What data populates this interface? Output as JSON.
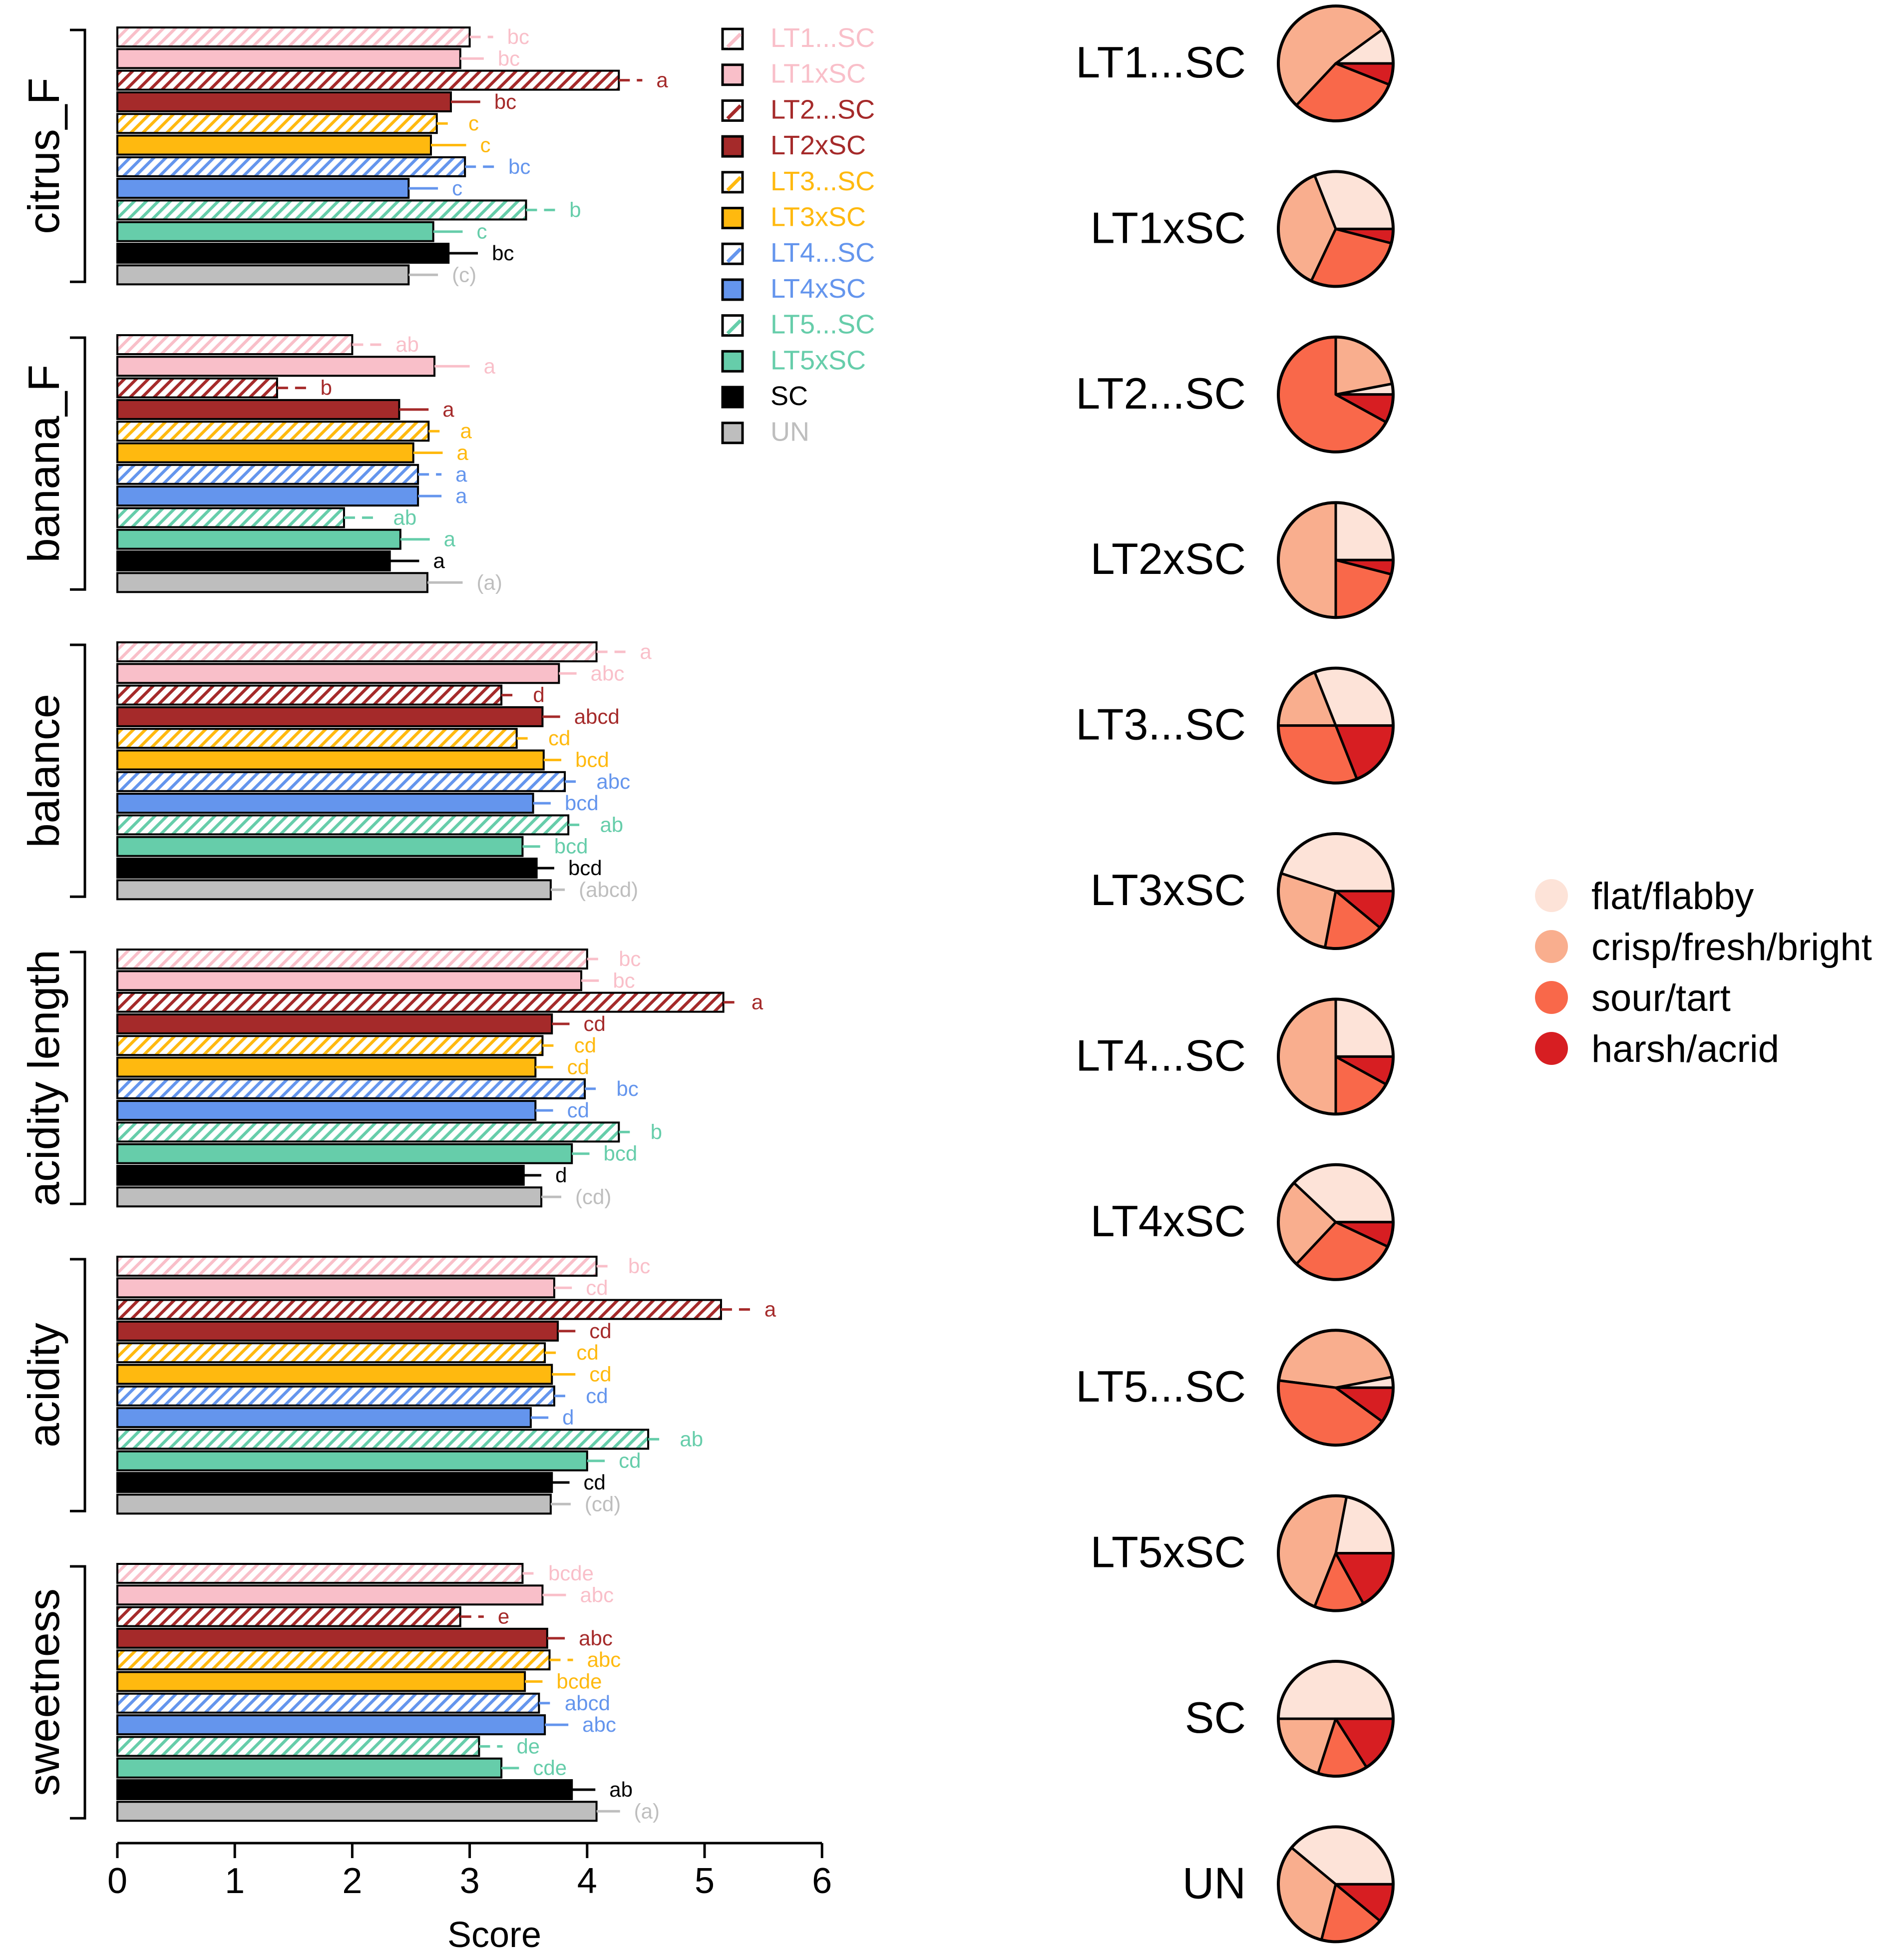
{
  "chart_data": [
    {
      "type": "bar",
      "orientation": "horizontal",
      "title": "",
      "xlabel": "Score",
      "xlim": [
        0,
        6
      ],
      "xticks": [
        "0",
        "1",
        "2",
        "3",
        "4",
        "5",
        "6"
      ],
      "attributes": [
        "citrus_F",
        "banana_F",
        "balance",
        "acidity length",
        "acidity",
        "sweetness"
      ],
      "series": [
        {
          "name": "LT1...SC",
          "color": "#F9BFC9",
          "hatched": true,
          "values": [
            3.0,
            2.0,
            4.08,
            4.0,
            4.08,
            3.45
          ],
          "errors": [
            0.2,
            0.25,
            0.25,
            0.15,
            0.15,
            0.1
          ],
          "letters": [
            "bc",
            "ab",
            "a",
            "bc",
            "bc",
            "bcde"
          ]
        },
        {
          "name": "LT1xSC",
          "color": "#F9BFC9",
          "hatched": false,
          "values": [
            2.92,
            2.7,
            3.76,
            3.95,
            3.72,
            3.62
          ],
          "errors": [
            0.2,
            0.3,
            0.15,
            0.15,
            0.15,
            0.2
          ],
          "letters": [
            "bc",
            "a",
            "abc",
            "bc",
            "cd",
            "abc"
          ]
        },
        {
          "name": "LT2...SC",
          "color": "#A52A2A",
          "hatched": true,
          "values": [
            4.27,
            1.36,
            3.27,
            5.16,
            5.14,
            2.92
          ],
          "errors": [
            0.2,
            0.25,
            0.15,
            0.12,
            0.25,
            0.2
          ],
          "letters": [
            "a",
            "b",
            "d",
            "a",
            "a",
            "e"
          ]
        },
        {
          "name": "LT2xSC",
          "color": "#A52A2A",
          "hatched": false,
          "values": [
            2.84,
            2.4,
            3.62,
            3.7,
            3.75,
            3.66
          ],
          "errors": [
            0.25,
            0.25,
            0.15,
            0.15,
            0.15,
            0.15
          ],
          "letters": [
            "bc",
            "a",
            "abcd",
            "cd",
            "cd",
            "abc"
          ]
        },
        {
          "name": "LT3...SC",
          "color": "#FFB90F",
          "hatched": true,
          "values": [
            2.72,
            2.65,
            3.4,
            3.62,
            3.64,
            3.68
          ],
          "errors": [
            0.15,
            0.15,
            0.15,
            0.15,
            0.15,
            0.2
          ],
          "letters": [
            "c",
            "a",
            "cd",
            "cd",
            "cd",
            "abc"
          ]
        },
        {
          "name": "LT3xSC",
          "color": "#FFB90F",
          "hatched": false,
          "values": [
            2.67,
            2.52,
            3.63,
            3.56,
            3.7,
            3.47
          ],
          "errors": [
            0.3,
            0.25,
            0.15,
            0.15,
            0.2,
            0.15
          ],
          "letters": [
            "c",
            "a",
            "bcd",
            "cd",
            "cd",
            "bcde"
          ]
        },
        {
          "name": "LT4...SC",
          "color": "#6495ED",
          "hatched": true,
          "values": [
            2.96,
            2.56,
            3.81,
            3.98,
            3.72,
            3.59
          ],
          "errors": [
            0.25,
            0.2,
            0.15,
            0.15,
            0.15,
            0.1
          ],
          "letters": [
            "bc",
            "a",
            "abc",
            "bc",
            "cd",
            "abcd"
          ]
        },
        {
          "name": "LT4xSC",
          "color": "#6495ED",
          "hatched": false,
          "values": [
            2.48,
            2.56,
            3.54,
            3.56,
            3.52,
            3.64
          ],
          "errors": [
            0.25,
            0.2,
            0.15,
            0.15,
            0.15,
            0.2
          ],
          "letters": [
            "c",
            "a",
            "bcd",
            "cd",
            "d",
            "abc"
          ]
        },
        {
          "name": "LT5...SC",
          "color": "#66CDAA",
          "hatched": true,
          "values": [
            3.48,
            1.93,
            3.84,
            4.27,
            4.52,
            3.08
          ],
          "errors": [
            0.25,
            0.3,
            0.15,
            0.15,
            0.15,
            0.2
          ],
          "letters": [
            "b",
            "ab",
            "ab",
            "b",
            "ab",
            "de"
          ]
        },
        {
          "name": "LT5xSC",
          "color": "#66CDAA",
          "hatched": false,
          "values": [
            2.69,
            2.41,
            3.45,
            3.87,
            4.0,
            3.27
          ],
          "errors": [
            0.25,
            0.25,
            0.15,
            0.15,
            0.15,
            0.15
          ],
          "letters": [
            "c",
            "a",
            "bcd",
            "bcd",
            "cd",
            "cde"
          ]
        },
        {
          "name": "SC",
          "color": "#000000",
          "hatched": false,
          "values": [
            2.82,
            2.32,
            3.57,
            3.46,
            3.7,
            3.87
          ],
          "errors": [
            0.25,
            0.25,
            0.15,
            0.15,
            0.15,
            0.2
          ],
          "letters": [
            "bc",
            "a",
            "bcd",
            "d",
            "cd",
            "ab"
          ]
        },
        {
          "name": "UN",
          "color": "#BEBEBE",
          "hatched": false,
          "values": [
            2.48,
            2.64,
            3.69,
            3.61,
            3.69,
            4.08
          ],
          "errors": [
            0.25,
            0.3,
            0.12,
            0.17,
            0.17,
            0.2
          ],
          "letters": [
            "(c)",
            "(a)",
            "(abcd)",
            "(cd)",
            "(cd)",
            "(a)"
          ]
        }
      ]
    },
    {
      "type": "pie",
      "title": "",
      "categories": [
        "flat/flabby",
        "crisp/fresh/bright",
        "sour/tart",
        "harsh/acrid"
      ],
      "colors": [
        "#FDE3D8",
        "#F9AE8E",
        "#F9684A",
        "#D71E22"
      ],
      "treatments": [
        {
          "name": "LT1...SC",
          "values": [
            0.1,
            0.53,
            0.31,
            0.06
          ]
        },
        {
          "name": "LT1xSC",
          "values": [
            0.31,
            0.37,
            0.28,
            0.04
          ]
        },
        {
          "name": "LT2...SC",
          "values": [
            0.03,
            0.22,
            0.67,
            0.08
          ]
        },
        {
          "name": "LT2xSC",
          "values": [
            0.25,
            0.5,
            0.21,
            0.04
          ]
        },
        {
          "name": "LT3...SC",
          "values": [
            0.31,
            0.19,
            0.31,
            0.19
          ]
        },
        {
          "name": "LT3xSC",
          "values": [
            0.45,
            0.27,
            0.17,
            0.11
          ]
        },
        {
          "name": "LT4...SC",
          "values": [
            0.25,
            0.5,
            0.17,
            0.08
          ]
        },
        {
          "name": "LT4xSC",
          "values": [
            0.38,
            0.25,
            0.3,
            0.07
          ]
        },
        {
          "name": "LT5...SC",
          "values": [
            0.03,
            0.45,
            0.42,
            0.1
          ]
        },
        {
          "name": "LT5xSC",
          "values": [
            0.22,
            0.47,
            0.14,
            0.17
          ]
        },
        {
          "name": "SC",
          "values": [
            0.5,
            0.2,
            0.14,
            0.16
          ]
        },
        {
          "name": "UN",
          "values": [
            0.39,
            0.32,
            0.18,
            0.11
          ]
        }
      ]
    }
  ]
}
